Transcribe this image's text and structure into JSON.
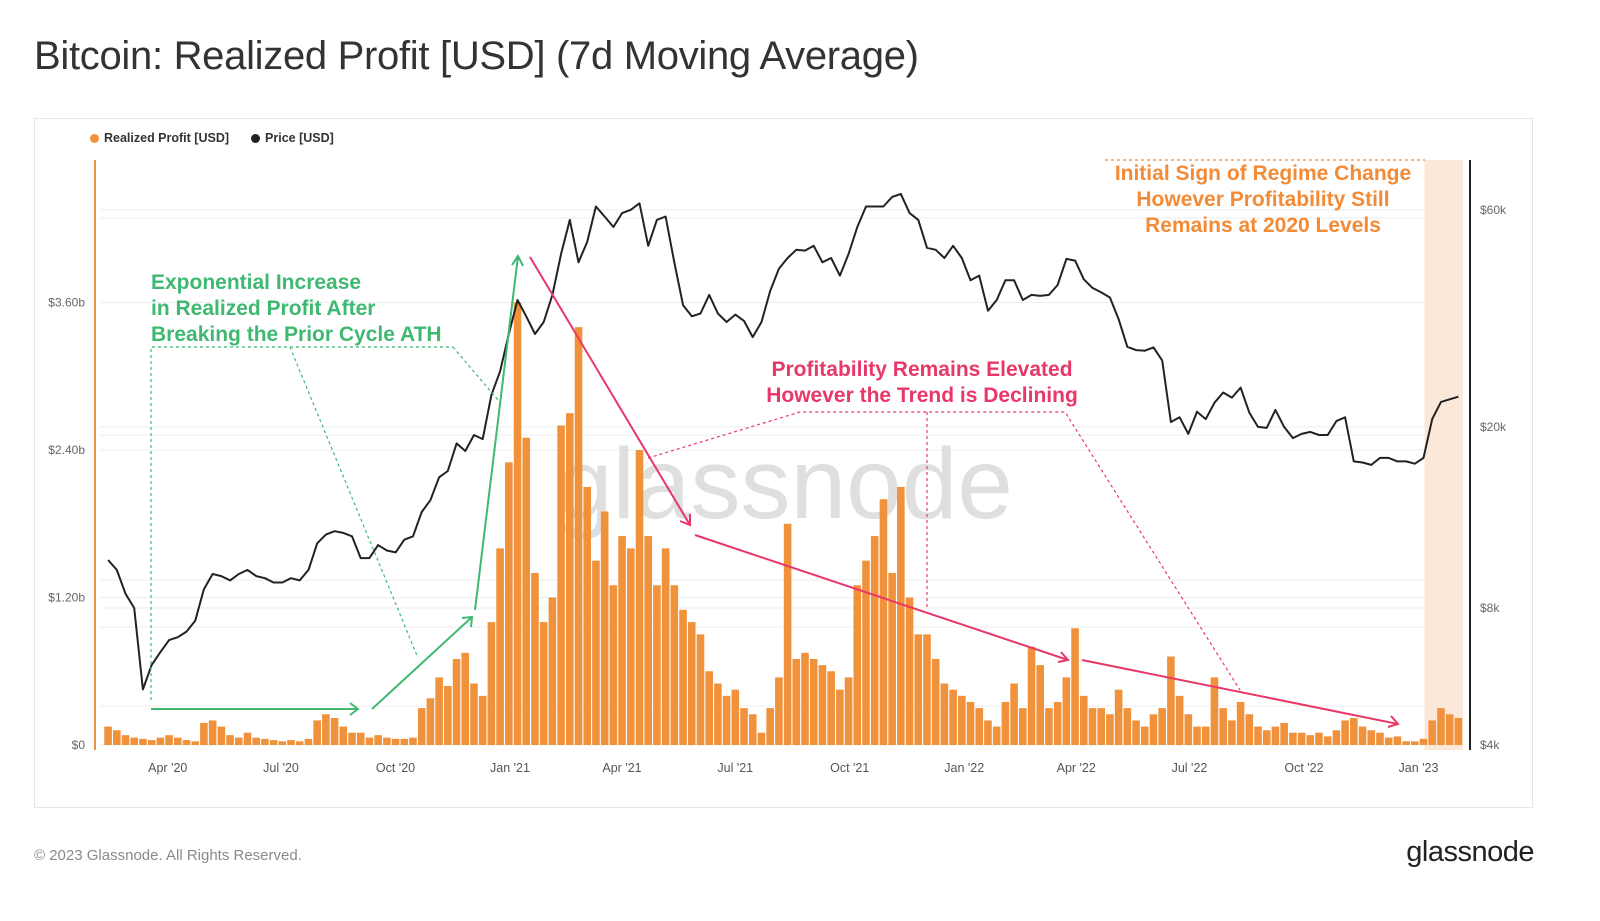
{
  "title": "Bitcoin: Realized Profit [USD] (7d Moving Average)",
  "footer": "© 2023 Glassnode. All Rights Reserved.",
  "logo": "glassnode",
  "watermark": "glassnode",
  "legend": [
    {
      "label": "Realized Profit [USD]",
      "color": "#f0923b"
    },
    {
      "label": "Price [USD]",
      "color": "#222222"
    }
  ],
  "annotations": {
    "green": [
      "Exponential Increase",
      "in Realized Profit After",
      "Breaking the Prior Cycle ATH"
    ],
    "pink": [
      "Profitability Remains Elevated",
      "However the Trend is Declining"
    ],
    "orange": [
      "Initial Sign of Regime Change",
      "However Profitability Still",
      "Remains at 2020 Levels"
    ],
    "colors": {
      "green": "#3fb871",
      "pink": "#e83868",
      "orange": "#f28a36",
      "highlight": "#fce8d9"
    }
  },
  "chart_data": {
    "type": "bar+line",
    "title": "Bitcoin: Realized Profit [USD] (7d Moving Average)",
    "x_ticks": [
      "Apr '20",
      "Jul '20",
      "Oct '20",
      "Jan '21",
      "Apr '21",
      "Jul '21",
      "Oct '21",
      "Jan '22",
      "Apr '22",
      "Jul '22",
      "Oct '22",
      "Jan '23"
    ],
    "y_left": {
      "ticks": [
        "$0",
        "$1.20b",
        "$2.40b",
        "$3.60b"
      ],
      "tick_values": [
        0,
        1.2,
        2.4,
        3.6
      ],
      "unit": "USD billions",
      "scale": "linear"
    },
    "y_right": {
      "ticks": [
        "$4k",
        "$8k",
        "$20k",
        "$60k"
      ],
      "tick_values": [
        4000,
        8000,
        20000,
        60000
      ],
      "scale": "log"
    },
    "grid": true,
    "legend_position": "top-left",
    "highlight_range": [
      "2023-01-01",
      "2023-02-04"
    ],
    "x": [
      "2020-02-10",
      "2020-02-17",
      "2020-02-24",
      "2020-03-02",
      "2020-03-09",
      "2020-03-16",
      "2020-03-23",
      "2020-03-30",
      "2020-04-06",
      "2020-04-13",
      "2020-04-20",
      "2020-04-27",
      "2020-05-04",
      "2020-05-11",
      "2020-05-18",
      "2020-05-25",
      "2020-06-01",
      "2020-06-08",
      "2020-06-15",
      "2020-06-22",
      "2020-06-29",
      "2020-07-06",
      "2020-07-13",
      "2020-07-20",
      "2020-07-27",
      "2020-08-03",
      "2020-08-10",
      "2020-08-17",
      "2020-08-24",
      "2020-08-31",
      "2020-09-07",
      "2020-09-14",
      "2020-09-21",
      "2020-09-28",
      "2020-10-05",
      "2020-10-12",
      "2020-10-19",
      "2020-10-26",
      "2020-11-02",
      "2020-11-09",
      "2020-11-16",
      "2020-11-23",
      "2020-11-30",
      "2020-12-07",
      "2020-12-14",
      "2020-12-21",
      "2020-12-28",
      "2021-01-04",
      "2021-01-11",
      "2021-01-18",
      "2021-01-25",
      "2021-02-01",
      "2021-02-08",
      "2021-02-15",
      "2021-02-22",
      "2021-03-01",
      "2021-03-08",
      "2021-03-15",
      "2021-03-22",
      "2021-03-29",
      "2021-04-05",
      "2021-04-12",
      "2021-04-19",
      "2021-04-26",
      "2021-05-03",
      "2021-05-10",
      "2021-05-17",
      "2021-05-24",
      "2021-05-31",
      "2021-06-07",
      "2021-06-14",
      "2021-06-21",
      "2021-06-28",
      "2021-07-05",
      "2021-07-12",
      "2021-07-19",
      "2021-07-26",
      "2021-08-02",
      "2021-08-09",
      "2021-08-16",
      "2021-08-23",
      "2021-08-30",
      "2021-09-06",
      "2021-09-13",
      "2021-09-20",
      "2021-09-27",
      "2021-10-04",
      "2021-10-11",
      "2021-10-18",
      "2021-10-25",
      "2021-11-01",
      "2021-11-08",
      "2021-11-15",
      "2021-11-22",
      "2021-11-29",
      "2021-12-06",
      "2021-12-13",
      "2021-12-20",
      "2021-12-27",
      "2022-01-03",
      "2022-01-10",
      "2022-01-17",
      "2022-01-24",
      "2022-01-31",
      "2022-02-07",
      "2022-02-14",
      "2022-02-21",
      "2022-02-28",
      "2022-03-07",
      "2022-03-14",
      "2022-03-21",
      "2022-03-28",
      "2022-04-04",
      "2022-04-11",
      "2022-04-18",
      "2022-04-25",
      "2022-05-02",
      "2022-05-09",
      "2022-05-16",
      "2022-05-23",
      "2022-05-30",
      "2022-06-06",
      "2022-06-13",
      "2022-06-20",
      "2022-06-27",
      "2022-07-04",
      "2022-07-11",
      "2022-07-18",
      "2022-07-25",
      "2022-08-01",
      "2022-08-08",
      "2022-08-15",
      "2022-08-22",
      "2022-08-29",
      "2022-09-05",
      "2022-09-12",
      "2022-09-19",
      "2022-09-26",
      "2022-10-03",
      "2022-10-10",
      "2022-10-17",
      "2022-10-24",
      "2022-10-31",
      "2022-11-07",
      "2022-11-14",
      "2022-11-21",
      "2022-11-28",
      "2022-12-05",
      "2022-12-12",
      "2022-12-19",
      "2022-12-26",
      "2023-01-02",
      "2023-01-09",
      "2023-01-16",
      "2023-01-23",
      "2023-01-30"
    ],
    "series": [
      {
        "name": "Realized Profit [USD]",
        "type": "bar",
        "axis": "left",
        "color": "#f0923b",
        "values": [
          0.15,
          0.12,
          0.08,
          0.06,
          0.05,
          0.04,
          0.06,
          0.08,
          0.06,
          0.04,
          0.03,
          0.18,
          0.2,
          0.15,
          0.08,
          0.06,
          0.1,
          0.06,
          0.05,
          0.04,
          0.03,
          0.04,
          0.03,
          0.05,
          0.2,
          0.25,
          0.22,
          0.15,
          0.1,
          0.1,
          0.06,
          0.08,
          0.06,
          0.05,
          0.05,
          0.06,
          0.3,
          0.38,
          0.55,
          0.48,
          0.7,
          0.75,
          0.5,
          0.4,
          1.0,
          1.6,
          2.3,
          3.6,
          2.5,
          1.4,
          1.0,
          1.2,
          2.6,
          2.7,
          3.4,
          2.1,
          1.5,
          1.9,
          1.3,
          1.7,
          1.6,
          2.4,
          1.7,
          1.3,
          1.6,
          1.3,
          1.1,
          1.0,
          0.9,
          0.6,
          0.5,
          0.4,
          0.45,
          0.3,
          0.25,
          0.1,
          0.3,
          0.55,
          1.8,
          0.7,
          0.75,
          0.7,
          0.65,
          0.6,
          0.45,
          0.55,
          1.3,
          1.5,
          1.7,
          2.0,
          1.4,
          2.1,
          1.2,
          0.9,
          0.9,
          0.7,
          0.5,
          0.45,
          0.4,
          0.35,
          0.3,
          0.2,
          0.15,
          0.35,
          0.5,
          0.3,
          0.8,
          0.65,
          0.3,
          0.35,
          0.55,
          0.95,
          0.4,
          0.3,
          0.3,
          0.25,
          0.45,
          0.3,
          0.2,
          0.15,
          0.25,
          0.3,
          0.72,
          0.4,
          0.25,
          0.15,
          0.15,
          0.55,
          0.3,
          0.2,
          0.35,
          0.25,
          0.15,
          0.12,
          0.15,
          0.18,
          0.1,
          0.1,
          0.08,
          0.1,
          0.07,
          0.12,
          0.2,
          0.22,
          0.15,
          0.12,
          0.1,
          0.06,
          0.07,
          0.03,
          0.03,
          0.05,
          0.2,
          0.3,
          0.25,
          0.22
        ]
      },
      {
        "name": "Price [USD]",
        "type": "line",
        "axis": "right",
        "color": "#222222",
        "values": [
          10200,
          9700,
          8600,
          8000,
          5300,
          6000,
          6400,
          6800,
          6900,
          7100,
          7500,
          8800,
          9500,
          9400,
          9200,
          9500,
          9700,
          9400,
          9300,
          9100,
          9100,
          9300,
          9200,
          9700,
          11100,
          11600,
          11800,
          11700,
          11500,
          10300,
          10300,
          11000,
          10700,
          10600,
          11300,
          11500,
          13000,
          13800,
          15500,
          16000,
          18400,
          17700,
          19200,
          18800,
          23500,
          26500,
          32000,
          38000,
          35000,
          32000,
          34000,
          39000,
          48000,
          57000,
          46000,
          51000,
          61000,
          58000,
          55000,
          59000,
          60000,
          62000,
          50000,
          57000,
          58000,
          46000,
          37000,
          35000,
          35500,
          39000,
          35500,
          34000,
          35300,
          34200,
          31500,
          34000,
          39800,
          44500,
          47000,
          49000,
          48800,
          50000,
          46000,
          47000,
          43000,
          48000,
          55000,
          61000,
          61000,
          61000,
          64000,
          65000,
          59000,
          57000,
          49500,
          49000,
          47000,
          50000,
          47000,
          42000,
          43000,
          36000,
          38000,
          42000,
          42000,
          38000,
          39000,
          38800,
          39000,
          41000,
          46800,
          46400,
          42200,
          40400,
          39500,
          38500,
          34500,
          30000,
          29500,
          29400,
          29900,
          28000,
          20500,
          21000,
          19300,
          21600,
          20800,
          22600,
          23800,
          23200,
          24400,
          21500,
          20000,
          19900,
          21800,
          20000,
          18900,
          19300,
          19500,
          19200,
          19200,
          20600,
          21000,
          16800,
          16700,
          16500,
          17100,
          17100,
          16800,
          16800,
          16600,
          17100,
          20800,
          22700,
          23000,
          23300
        ]
      }
    ]
  }
}
